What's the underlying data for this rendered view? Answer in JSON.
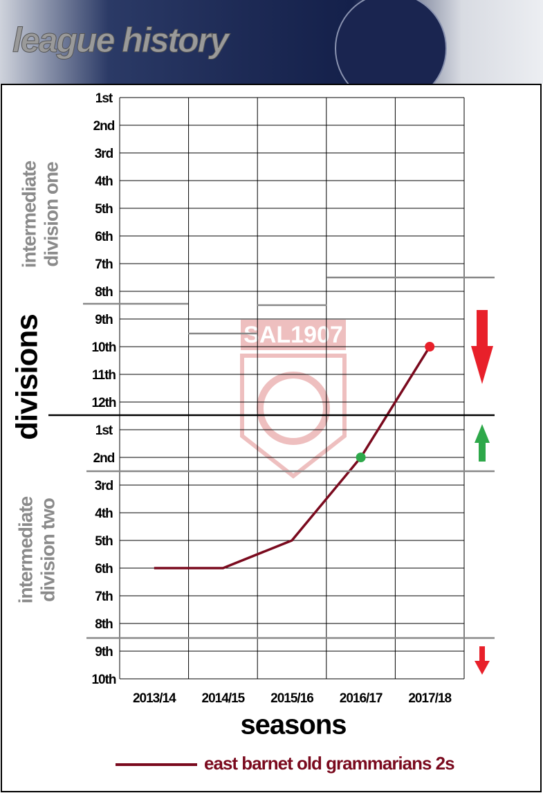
{
  "header": {
    "title": "league history"
  },
  "watermark": "SAL1907",
  "chart_data": {
    "type": "line",
    "y_label": "divisions",
    "x_label": "seasons",
    "sections": [
      [
        "intermediate",
        "division one"
      ],
      [
        "intermediate",
        "division two"
      ]
    ],
    "categories": [
      "2013/14",
      "2014/15",
      "2015/16",
      "2016/17",
      "2017/18"
    ],
    "series": [
      {
        "name": "east barnet old grammarians 2s",
        "color": "#7a0a1e",
        "values": [
          18,
          18,
          17,
          14,
          10
        ],
        "point_colors": [
          null,
          null,
          null,
          "#2ea84a",
          "#e8202a"
        ]
      }
    ],
    "ylim": [
      1,
      22
    ],
    "y_inverted": true,
    "yticks": [
      {
        "value": 1,
        "label": "1st"
      },
      {
        "value": 2,
        "label": "2nd"
      },
      {
        "value": 3,
        "label": "3rd"
      },
      {
        "value": 4,
        "label": "4th"
      },
      {
        "value": 5,
        "label": "5th"
      },
      {
        "value": 6,
        "label": "6th"
      },
      {
        "value": 7,
        "label": "7th"
      },
      {
        "value": 8,
        "label": "8th"
      },
      {
        "value": 9,
        "label": "9th"
      },
      {
        "value": 10,
        "label": "10th"
      },
      {
        "value": 11,
        "label": "11th"
      },
      {
        "value": 12,
        "label": "12th"
      },
      {
        "value": 13,
        "label": "1st"
      },
      {
        "value": 14,
        "label": "2nd"
      },
      {
        "value": 15,
        "label": "3rd"
      },
      {
        "value": 16,
        "label": "4th"
      },
      {
        "value": 17,
        "label": "5th"
      },
      {
        "value": 18,
        "label": "6th"
      },
      {
        "value": 19,
        "label": "7th"
      },
      {
        "value": 20,
        "label": "8th"
      },
      {
        "value": 21,
        "label": "9th"
      },
      {
        "value": 22,
        "label": "10th"
      }
    ],
    "grid": true
  }
}
